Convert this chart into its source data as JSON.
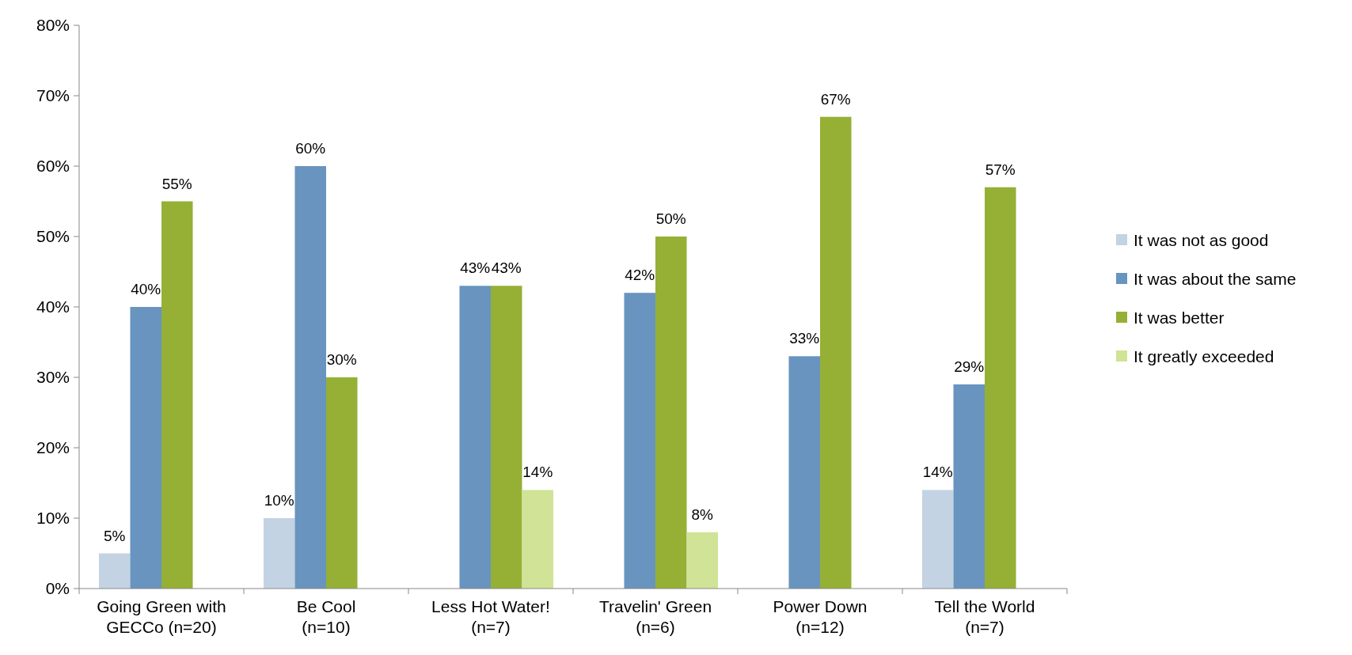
{
  "chart_data": {
    "type": "bar",
    "categories": [
      "Going Green with\nGECCo (n=20)",
      "Be Cool\n(n=10)",
      "Less Hot Water!\n(n=7)",
      "Travelin' Green\n(n=6)",
      "Power Down\n(n=12)",
      "Tell the World\n(n=7)"
    ],
    "series": [
      {
        "name": "It was not as good",
        "color": "#c3d3e3",
        "values": [
          5,
          10,
          null,
          null,
          null,
          14
        ],
        "value_labels": [
          "5%",
          "10%",
          null,
          null,
          null,
          "14%"
        ]
      },
      {
        "name": "It was about the same",
        "color": "#6894bf",
        "values": [
          40,
          60,
          43,
          42,
          33,
          29
        ],
        "value_labels": [
          "40%",
          "60%",
          "43%",
          "42%",
          "33%",
          "29%"
        ]
      },
      {
        "name": "It was better",
        "color": "#95b035",
        "values": [
          55,
          30,
          43,
          50,
          67,
          57
        ],
        "value_labels": [
          "55%",
          "30%",
          "43%",
          "50%",
          "67%",
          "57%"
        ]
      },
      {
        "name": "It greatly exceeded",
        "color": "#d0e396",
        "values": [
          null,
          null,
          14,
          8,
          null,
          null
        ],
        "value_labels": [
          null,
          null,
          "14%",
          "8%",
          null,
          null
        ]
      }
    ],
    "ylim": [
      0,
      80
    ],
    "yticks": [
      {
        "value": 0,
        "label": "0%"
      },
      {
        "value": 10,
        "label": "10%"
      },
      {
        "value": 20,
        "label": "20%"
      },
      {
        "value": 30,
        "label": "30%"
      },
      {
        "value": 40,
        "label": "40%"
      },
      {
        "value": 50,
        "label": "50%"
      },
      {
        "value": 60,
        "label": "60%"
      },
      {
        "value": 70,
        "label": "70%"
      },
      {
        "value": 80,
        "label": "80%"
      }
    ],
    "legend": "right",
    "grid": false
  }
}
